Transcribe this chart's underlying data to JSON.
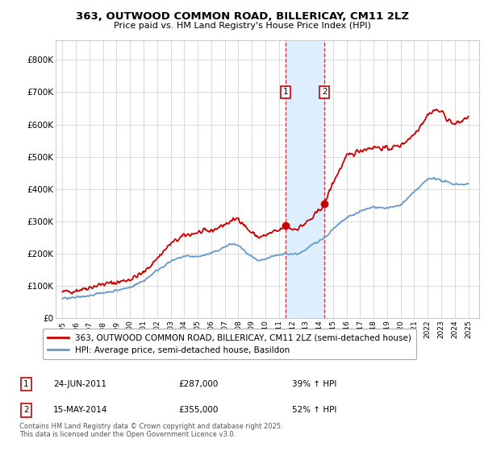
{
  "title": "363, OUTWOOD COMMON ROAD, BILLERICAY, CM11 2LZ",
  "subtitle": "Price paid vs. HM Land Registry's House Price Index (HPI)",
  "sale1_date": "24-JUN-2011",
  "sale1_price": 287000,
  "sale1_year": 2011.48,
  "sale2_date": "15-MAY-2014",
  "sale2_price": 355000,
  "sale2_year": 2014.37,
  "sale1_hpi_pct": "39% ↑ HPI",
  "sale2_hpi_pct": "52% ↑ HPI",
  "legend_line1": "363, OUTWOOD COMMON ROAD, BILLERICAY, CM11 2LZ (semi-detached house)",
  "legend_line2": "HPI: Average price, semi-detached house, Basildon",
  "footnote": "Contains HM Land Registry data © Crown copyright and database right 2025.\nThis data is licensed under the Open Government Licence v3.0.",
  "line_red_color": "#cc0000",
  "line_blue_color": "#6699cc",
  "shade_color": "#ddeeff",
  "grid_color": "#cccccc",
  "background_color": "#ffffff",
  "ylim": [
    0,
    860000
  ],
  "xlim": [
    1994.5,
    2025.8
  ],
  "yticks": [
    0,
    100000,
    200000,
    300000,
    400000,
    500000,
    600000,
    700000,
    800000
  ],
  "ylabels": [
    "£0",
    "£100K",
    "£200K",
    "£300K",
    "£400K",
    "£500K",
    "£600K",
    "£700K",
    "£800K"
  ]
}
